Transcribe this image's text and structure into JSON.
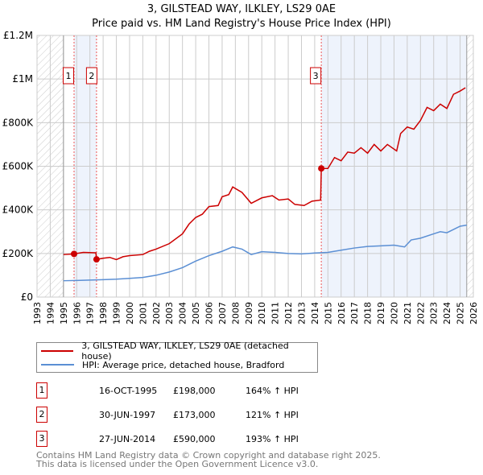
{
  "title": "3, GILSTEAD WAY, ILKLEY, LS29 0AE",
  "subtitle": "Price paid vs. HM Land Registry's House Price Index (HPI)",
  "colors": {
    "property": "#cc0000",
    "hpi": "#5b8fd4",
    "shade": "#eef3fc",
    "grid": "#cccccc"
  },
  "chart_data": {
    "type": "line",
    "xlim": [
      1993,
      2026
    ],
    "ylim": [
      0,
      1200000
    ],
    "x_ticks": [
      "1993",
      "1994",
      "1995",
      "1996",
      "1997",
      "1998",
      "1999",
      "2000",
      "2001",
      "2002",
      "2003",
      "2004",
      "2005",
      "2006",
      "2007",
      "2008",
      "2009",
      "2010",
      "2011",
      "2012",
      "2013",
      "2014",
      "2015",
      "2016",
      "2017",
      "2018",
      "2019",
      "2020",
      "2021",
      "2022",
      "2023",
      "2024",
      "2025",
      "2026"
    ],
    "y_ticks": [
      {
        "v": 0,
        "label": "£0"
      },
      {
        "v": 200000,
        "label": "£200K"
      },
      {
        "v": 400000,
        "label": "£400K"
      },
      {
        "v": 600000,
        "label": "£600K"
      },
      {
        "v": 800000,
        "label": "£800K"
      },
      {
        "v": 1000000,
        "label": "£1M"
      },
      {
        "v": 1200000,
        "label": "£1.2M"
      }
    ],
    "hatched_ranges": [
      [
        1993,
        1995
      ],
      [
        2025.5,
        2026
      ]
    ],
    "shaded_ranges": [
      [
        1995.8,
        1997.5
      ],
      [
        2014.5,
        2025.5
      ]
    ],
    "series": [
      {
        "name": "3, GILSTEAD WAY, ILKLEY, LS29 0AE (detached house)",
        "color": "#cc0000",
        "points": [
          [
            1995,
            195000
          ],
          [
            1995.8,
            198000
          ],
          [
            1996.5,
            205000
          ],
          [
            1997.45,
            203000
          ],
          [
            1997.5,
            173000
          ],
          [
            1998,
            178000
          ],
          [
            1998.5,
            182000
          ],
          [
            1999,
            172000
          ],
          [
            1999.5,
            185000
          ],
          [
            2000,
            190000
          ],
          [
            2001,
            195000
          ],
          [
            2001.5,
            210000
          ],
          [
            2002,
            220000
          ],
          [
            2003,
            245000
          ],
          [
            2004,
            290000
          ],
          [
            2004.5,
            335000
          ],
          [
            2005,
            365000
          ],
          [
            2005.5,
            380000
          ],
          [
            2006,
            415000
          ],
          [
            2006.7,
            420000
          ],
          [
            2007,
            460000
          ],
          [
            2007.5,
            470000
          ],
          [
            2007.8,
            505000
          ],
          [
            2008.5,
            480000
          ],
          [
            2009.2,
            430000
          ],
          [
            2010,
            455000
          ],
          [
            2010.8,
            465000
          ],
          [
            2011.3,
            445000
          ],
          [
            2012,
            450000
          ],
          [
            2012.5,
            425000
          ],
          [
            2013.2,
            420000
          ],
          [
            2013.8,
            440000
          ],
          [
            2014.45,
            445000
          ],
          [
            2014.5,
            590000
          ],
          [
            2015,
            590000
          ],
          [
            2015.5,
            640000
          ],
          [
            2016,
            625000
          ],
          [
            2016.5,
            665000
          ],
          [
            2017,
            660000
          ],
          [
            2017.5,
            685000
          ],
          [
            2018,
            660000
          ],
          [
            2018.5,
            700000
          ],
          [
            2019,
            670000
          ],
          [
            2019.5,
            700000
          ],
          [
            2020.2,
            670000
          ],
          [
            2020.5,
            750000
          ],
          [
            2021,
            780000
          ],
          [
            2021.5,
            770000
          ],
          [
            2022,
            810000
          ],
          [
            2022.5,
            870000
          ],
          [
            2023,
            855000
          ],
          [
            2023.5,
            885000
          ],
          [
            2024,
            865000
          ],
          [
            2024.5,
            930000
          ],
          [
            2025,
            945000
          ],
          [
            2025.4,
            960000
          ]
        ]
      },
      {
        "name": "HPI: Average price, detached house, Bradford",
        "color": "#5b8fd4",
        "points": [
          [
            1995,
            75000
          ],
          [
            1996,
            76000
          ],
          [
            1997,
            78000
          ],
          [
            1998,
            80000
          ],
          [
            1999,
            82000
          ],
          [
            2000,
            86000
          ],
          [
            2001,
            90000
          ],
          [
            2002,
            100000
          ],
          [
            2003,
            115000
          ],
          [
            2004,
            135000
          ],
          [
            2005,
            165000
          ],
          [
            2006,
            190000
          ],
          [
            2007,
            210000
          ],
          [
            2007.8,
            230000
          ],
          [
            2008.5,
            220000
          ],
          [
            2009.2,
            195000
          ],
          [
            2010,
            208000
          ],
          [
            2011,
            205000
          ],
          [
            2012,
            200000
          ],
          [
            2013,
            198000
          ],
          [
            2014,
            202000
          ],
          [
            2015,
            205000
          ],
          [
            2016,
            215000
          ],
          [
            2017,
            225000
          ],
          [
            2018,
            232000
          ],
          [
            2019,
            235000
          ],
          [
            2020,
            238000
          ],
          [
            2020.8,
            230000
          ],
          [
            2021.3,
            262000
          ],
          [
            2022,
            270000
          ],
          [
            2023,
            290000
          ],
          [
            2023.5,
            300000
          ],
          [
            2024,
            295000
          ],
          [
            2025,
            325000
          ],
          [
            2025.5,
            330000
          ]
        ]
      }
    ],
    "sales": [
      {
        "label": "1",
        "x": 1995.8,
        "y": 198000
      },
      {
        "label": "2",
        "x": 1997.5,
        "y": 173000
      },
      {
        "label": "3",
        "x": 2014.5,
        "y": 590000
      }
    ]
  },
  "transactions": [
    {
      "num": "1",
      "date": "16-OCT-1995",
      "price": "£198,000",
      "hpi": "164% ↑ HPI"
    },
    {
      "num": "2",
      "date": "30-JUN-1997",
      "price": "£173,000",
      "hpi": "121% ↑ HPI"
    },
    {
      "num": "3",
      "date": "27-JUN-2014",
      "price": "£590,000",
      "hpi": "193% ↑ HPI"
    }
  ],
  "footer": [
    "Contains HM Land Registry data © Crown copyright and database right 2025.",
    "This data is licensed under the Open Government Licence v3.0."
  ]
}
